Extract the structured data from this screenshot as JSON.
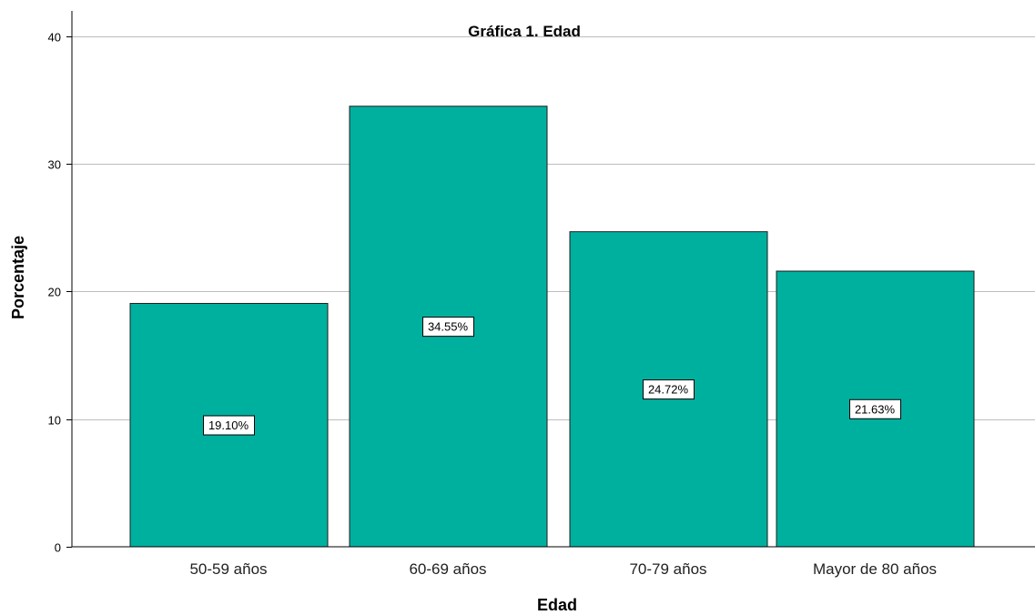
{
  "chart_data": {
    "type": "bar",
    "title": "Gráfica 1. Edad",
    "xlabel": "Edad",
    "ylabel": "Porcentaje",
    "categories": [
      "50-59 años",
      "60-69 años",
      "70-79 años",
      "Mayor de 80 años"
    ],
    "values": [
      19.1,
      34.55,
      24.72,
      21.63
    ],
    "data_labels": [
      "19.10%",
      "34.55%",
      "24.72%",
      "21.63%"
    ],
    "ylim": [
      0,
      42
    ],
    "yticks": [
      0,
      10,
      20,
      30,
      40
    ],
    "ytick_labels": [
      "0",
      "10",
      "20",
      "30",
      "40"
    ],
    "grid": true,
    "legend": "none",
    "bar_color": "#00b09f"
  }
}
